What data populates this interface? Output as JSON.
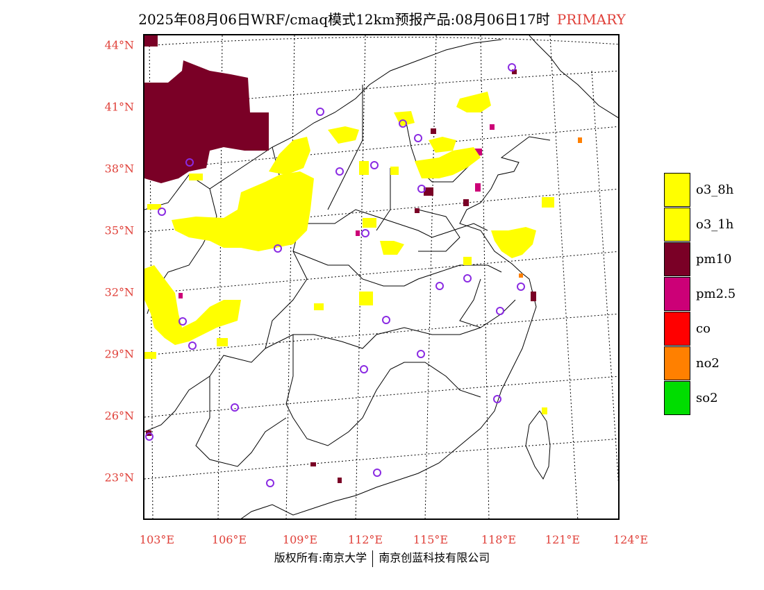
{
  "header": {
    "title": "2025年08月06日WRF/cmaq模式12km预报产品:08月06日17时",
    "tag": "PRIMARY"
  },
  "axes": {
    "lat_labels": [
      "44°N",
      "41°N",
      "38°N",
      "35°N",
      "32°N",
      "29°N",
      "26°N",
      "23°N"
    ],
    "lon_labels": [
      "103°E",
      "106°E",
      "109°E",
      "112°E",
      "115°E",
      "118°E",
      "121°E",
      "124°E"
    ]
  },
  "legend": {
    "items": [
      {
        "label": "o3_8h",
        "color": "#ffff00"
      },
      {
        "label": "o3_1h",
        "color": "#ffff00"
      },
      {
        "label": "pm10",
        "color": "#7a0026"
      },
      {
        "label": "pm2.5",
        "color": "#cc0077"
      },
      {
        "label": "co",
        "color": "#ff0000"
      },
      {
        "label": "no2",
        "color": "#ff8000"
      },
      {
        "label": "so2",
        "color": "#00dd00"
      }
    ]
  },
  "footer": {
    "copyright": "版权所有:南京大学",
    "company": "南京创蓝科技有限公司"
  },
  "colors": {
    "label_red": "#e0413a",
    "o3": "#ffff00",
    "pm10": "#7a0026",
    "pm25": "#cc0077",
    "no2": "#ff8000",
    "station_circle": "#8a2be2"
  }
}
